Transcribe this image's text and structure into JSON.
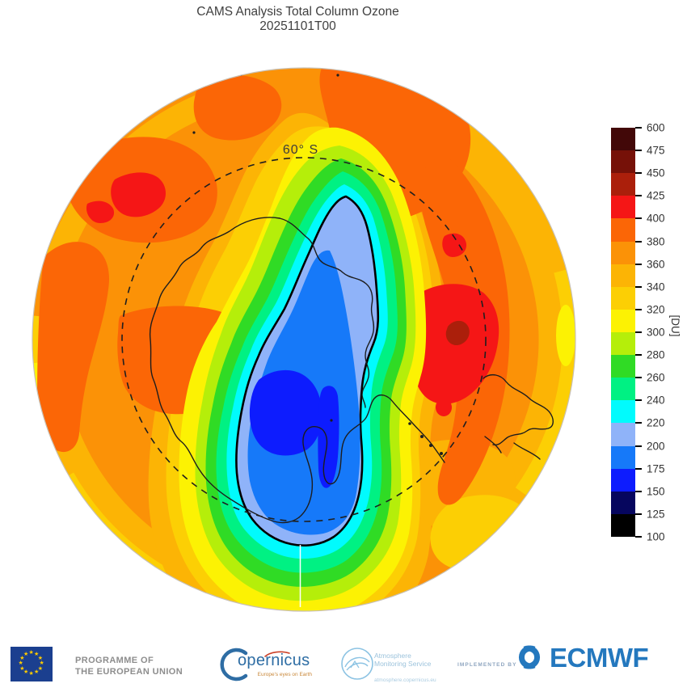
{
  "title": {
    "line1": "CAMS Analysis  Total Column Ozone",
    "line2": "20251101T00"
  },
  "map": {
    "latitude_label": "60° S"
  },
  "colorbar": {
    "unit_label": "[DU]",
    "levels_top_to_bottom": [
      600,
      475,
      450,
      425,
      400,
      380,
      360,
      340,
      320,
      300,
      280,
      260,
      240,
      220,
      200,
      175,
      150,
      125,
      100
    ],
    "cell_color_keys_top_to_bottom": [
      "b475",
      "b450",
      "b425",
      "b400",
      "b380",
      "b360",
      "b340",
      "b320",
      "b300",
      "b280",
      "b260",
      "b240",
      "b220",
      "b200",
      "b175",
      "b150",
      "b125",
      "b100"
    ]
  },
  "colors": {
    "b100": "#000000",
    "b125": "#06065e",
    "b150": "#0d1cfe",
    "b175": "#1679f9",
    "b200": "#8fb3f9",
    "b220": "#01fbfd",
    "b240": "#00f183",
    "b260": "#30db25",
    "b280": "#b5ee0a",
    "b300": "#fcf203",
    "b320": "#fccf04",
    "b340": "#fcb405",
    "b360": "#fb9207",
    "b380": "#fb6606",
    "b400": "#f51616",
    "b425": "#ab1f0b",
    "b450": "#761108",
    "b475": "#420808",
    "coastline": "#1d1d1d",
    "ozone_contour": "#000000",
    "grid_dash": "#1f1f1f",
    "map_rim": "#c9c0b2",
    "label_gray": "#3c3c3c",
    "title_gray": "#3f3f3f",
    "meridian_white": "#ffffff",
    "tick_label": "#333333",
    "eu_blue": "#1b3f8f",
    "eu_star_yellow": "#ffcc00",
    "eu_text_gray": "#8d8d8d",
    "copernicus_blue": "#2e6da4",
    "copernicus_red": "#cc4128",
    "copernicus_tagline": "#c9883a",
    "ams_blue": "#8cc3e3",
    "ams_text": "#9cc3dc",
    "implemented_gray": "#8fa6c0",
    "ecmwf_blue": "#2478be"
  },
  "chart_data": {
    "type": "heatmap",
    "subtype": "filled-contour south-polar stereographic map",
    "title": "CAMS Analysis  Total Column Ozone",
    "subtitle": "20251101T00",
    "units": "DU",
    "colorbar_label": "[DU]",
    "projection": "south polar stereographic",
    "latitude_ring": "60° S",
    "contour_levels_DU": [
      100,
      125,
      150,
      175,
      200,
      220,
      240,
      260,
      280,
      300,
      320,
      340,
      360,
      380,
      400,
      425,
      450,
      475,
      600
    ],
    "palette_bottom_to_top": [
      "#000000",
      "#06065e",
      "#0d1cfe",
      "#1679f9",
      "#8fb3f9",
      "#01fbfd",
      "#00f183",
      "#30db25",
      "#b5ee0a",
      "#fcf203",
      "#fccf04",
      "#fcb405",
      "#fb9207",
      "#fb6606",
      "#f51616",
      "#ab1f0b",
      "#761108",
      "#420808"
    ],
    "highlighted_contour_DU": 220,
    "legend_position": "right",
    "features": [
      {
        "name": "ozone hole",
        "value_range_DU": [
          150,
          220
        ],
        "description": "elongated region below 220 DU outlined in black, stretching from the pole toward 60°S across Antarctica"
      },
      {
        "name": "ozone hole core",
        "value_range_DU": [
          150,
          175
        ],
        "description": "deep blue minimum near the Ross Ice Shelf sector"
      },
      {
        "name": "ozone maxima",
        "value_range_DU": [
          400,
          450
        ],
        "description": "red lobes near 60°S at the upper-left and right of the map, darkest core 425-450 DU"
      },
      {
        "name": "background",
        "value_range_DU": [
          340,
          400
        ],
        "description": "orange mid-latitude field with yellow/amber bands near the map rim"
      }
    ]
  },
  "footer": {
    "eu": {
      "line1": "PROGRAMME OF",
      "line2": "THE EUROPEAN UNION",
      "star_icon": "★"
    },
    "copernicus": {
      "wordmark": "opernicus",
      "tagline": "Europe's eyes on Earth"
    },
    "ams": {
      "line1": "Atmosphere",
      "line2": "Monitoring Service",
      "url": "atmosphere.copernicus.eu"
    },
    "implemented_by": "IMPLEMENTED BY",
    "ecmwf_wordmark": "ECMWF"
  }
}
